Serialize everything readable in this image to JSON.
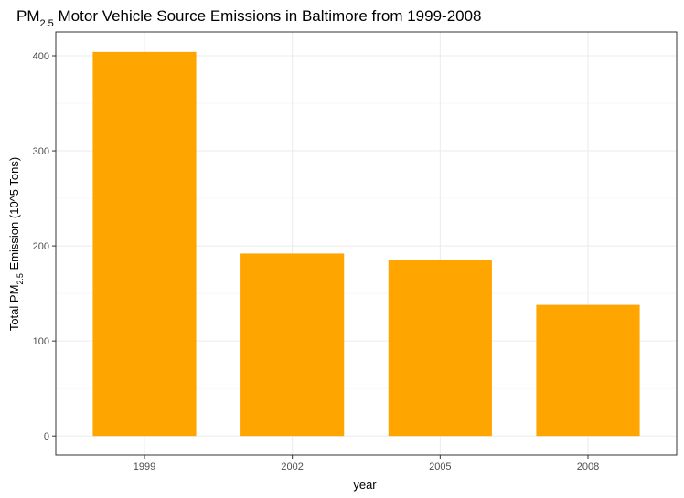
{
  "chart_data": {
    "type": "bar",
    "title": {
      "prefix": "PM",
      "subscript": "2.5",
      "suffix": " Motor Vehicle Source Emissions in Baltimore from 1999-2008"
    },
    "xlabel": "year",
    "ylabel": {
      "prefix": "Total PM",
      "subscript": "2.5",
      "suffix": " Emission (10^5 Tons)"
    },
    "categories": [
      "1999",
      "2002",
      "2005",
      "2008"
    ],
    "values": [
      404,
      192,
      185,
      138
    ],
    "ylim": [
      -20,
      425
    ],
    "yticks": [
      0,
      100,
      200,
      300,
      400
    ],
    "ytick_labels": [
      "0",
      "100",
      "200",
      "300",
      "400"
    ],
    "grid": true,
    "bar_color": "#FFA500",
    "grid_color": "#EBEBEB",
    "panel_border_color": "#333333"
  }
}
